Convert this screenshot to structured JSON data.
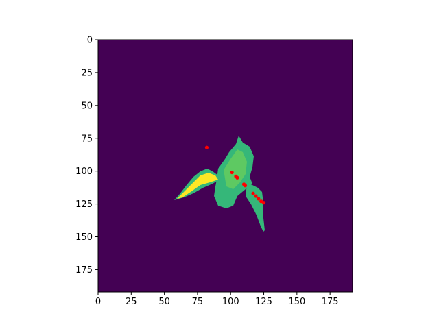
{
  "chart_data": {
    "type": "heatmap",
    "title": "",
    "xlabel": "",
    "ylabel": "",
    "xlim": [
      0,
      192
    ],
    "ylim": [
      192,
      0
    ],
    "x_ticks": [
      "0",
      "25",
      "50",
      "75",
      "100",
      "125",
      "150",
      "175"
    ],
    "y_ticks": [
      "0",
      "25",
      "50",
      "75",
      "100",
      "125",
      "150",
      "175"
    ],
    "grid": false,
    "colormap": "viridis",
    "colors": {
      "background": "#440154",
      "body": "#35b779",
      "body_light": "#5ec962",
      "highlight": "#fde725",
      "points": "#ff0000"
    },
    "scatter_points": [
      {
        "x": 82,
        "y": 82
      },
      {
        "x": 101,
        "y": 101
      },
      {
        "x": 104,
        "y": 104
      },
      {
        "x": 105,
        "y": 105
      },
      {
        "x": 110,
        "y": 110
      },
      {
        "x": 111,
        "y": 111
      },
      {
        "x": 117,
        "y": 117
      },
      {
        "x": 119,
        "y": 119
      },
      {
        "x": 121,
        "y": 121
      },
      {
        "x": 123,
        "y": 123
      },
      {
        "x": 125,
        "y": 124
      }
    ]
  }
}
